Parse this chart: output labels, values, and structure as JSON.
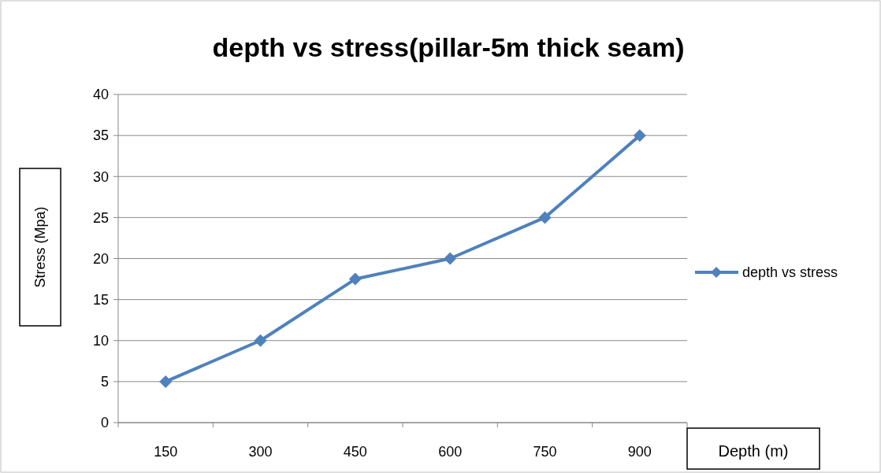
{
  "chart_data": {
    "type": "line",
    "title": "depth vs stress(pillar-5m thick seam)",
    "xlabel": "Depth (m)",
    "ylabel": "Stress (Mpa)",
    "categories": [
      "150",
      "300",
      "450",
      "600",
      "750",
      "900"
    ],
    "series": [
      {
        "name": "depth vs stress",
        "color": "#4f81bd",
        "values": [
          5,
          10,
          17.5,
          20,
          25,
          35
        ]
      }
    ],
    "ylim": [
      0,
      40
    ],
    "yticks": [
      0,
      5,
      10,
      15,
      20,
      25,
      30,
      35,
      40
    ],
    "grid": "y",
    "legend": "right",
    "marker": "diamond",
    "line_style": "solid"
  }
}
